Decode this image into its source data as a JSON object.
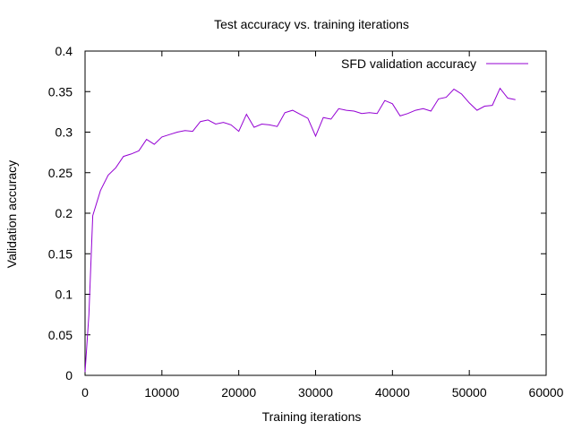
{
  "chart_data": {
    "type": "line",
    "title": "Test accuracy vs. training iterations",
    "xlabel": "Training iterations",
    "ylabel": "Validation accuracy",
    "xlim": [
      0,
      60000
    ],
    "ylim": [
      0,
      0.4
    ],
    "xticks": [
      "0",
      "10000",
      "20000",
      "30000",
      "40000",
      "50000",
      "60000"
    ],
    "yticks": [
      "0",
      "0.05",
      "0.1",
      "0.15",
      "0.2",
      "0.25",
      "0.3",
      "0.35",
      "0.4"
    ],
    "grid": false,
    "legend_position": "top-right",
    "series": [
      {
        "name": "SFD validation accuracy",
        "color": "#9400d3",
        "x": [
          0,
          500,
          1000,
          2000,
          3000,
          4000,
          5000,
          6000,
          7000,
          8000,
          9000,
          10000,
          11000,
          12000,
          13000,
          14000,
          15000,
          16000,
          17000,
          18000,
          19000,
          20000,
          21000,
          22000,
          23000,
          24000,
          25000,
          26000,
          27000,
          28000,
          29000,
          30000,
          31000,
          32000,
          33000,
          34000,
          35000,
          36000,
          37000,
          38000,
          39000,
          40000,
          41000,
          42000,
          43000,
          44000,
          45000,
          46000,
          47000,
          48000,
          49000,
          50000,
          51000,
          52000,
          53000,
          54000,
          55000,
          56000
        ],
        "y": [
          0.004,
          0.075,
          0.197,
          0.228,
          0.247,
          0.256,
          0.27,
          0.273,
          0.277,
          0.291,
          0.285,
          0.294,
          0.297,
          0.3,
          0.302,
          0.301,
          0.313,
          0.315,
          0.31,
          0.312,
          0.309,
          0.301,
          0.322,
          0.306,
          0.31,
          0.309,
          0.307,
          0.324,
          0.327,
          0.322,
          0.317,
          0.295,
          0.318,
          0.316,
          0.329,
          0.327,
          0.326,
          0.323,
          0.324,
          0.323,
          0.339,
          0.335,
          0.32,
          0.323,
          0.327,
          0.329,
          0.326,
          0.341,
          0.343,
          0.353,
          0.347,
          0.336,
          0.327,
          0.332,
          0.333,
          0.354,
          0.342,
          0.34
        ]
      }
    ]
  }
}
